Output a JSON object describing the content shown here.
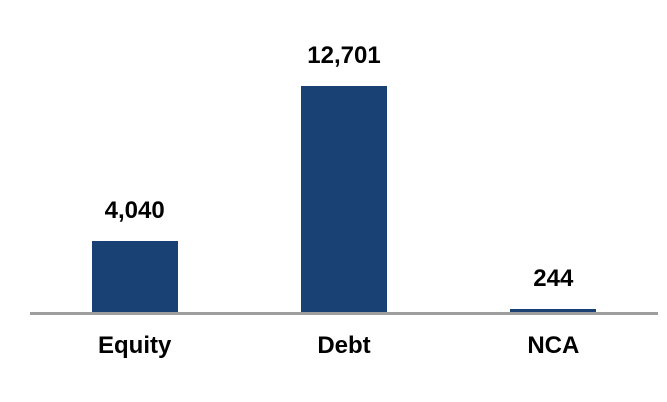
{
  "chart_data": {
    "type": "bar",
    "title": "",
    "categories": [
      "Equity",
      "Debt",
      "NCA"
    ],
    "values": [
      4040,
      12701,
      244
    ],
    "value_labels": [
      "4,040",
      "12,701",
      "244"
    ],
    "ylim": [
      0,
      12701
    ],
    "grid": "off",
    "legend": "none",
    "bar_color": "#1A4173",
    "axis_color": "#9E9E9E",
    "label_color": "#000000",
    "background_color": "#FFFFFF"
  }
}
